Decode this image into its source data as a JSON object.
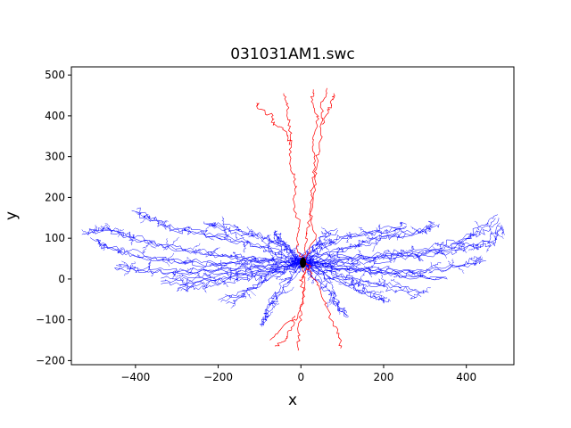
{
  "chart_data": {
    "type": "scatter",
    "title": "031031AM1.swc",
    "xlabel": "x",
    "ylabel": "y",
    "xlim": [
      -555,
      515
    ],
    "ylim": [
      -210,
      520
    ],
    "xticks": [
      -400,
      -200,
      0,
      200,
      400
    ],
    "xtick_labels": [
      "−400",
      "−200",
      "0",
      "200",
      "400"
    ],
    "yticks": [
      -200,
      -100,
      0,
      100,
      200,
      300,
      400,
      500
    ],
    "ytick_labels": [
      "−200",
      "−100",
      "0",
      "100",
      "200",
      "300",
      "400",
      "500"
    ],
    "grid": false,
    "legend": "none",
    "soma": {
      "x": 5,
      "y": 40,
      "color": "#000000"
    },
    "series": [
      {
        "color": "#0000ff",
        "paths": [
          [
            [
              5,
              40
            ],
            [
              -60,
              45
            ],
            [
              -130,
              50
            ],
            [
              -200,
              58
            ],
            [
              -270,
              68
            ],
            [
              -340,
              80
            ],
            [
              -400,
              100
            ],
            [
              -440,
              112
            ],
            [
              -480,
              122
            ],
            [
              -520,
              110
            ]
          ],
          [
            [
              5,
              40
            ],
            [
              -70,
              30
            ],
            [
              -150,
              25
            ],
            [
              -230,
              18
            ],
            [
              -310,
              15
            ],
            [
              -390,
              20
            ],
            [
              -450,
              28
            ]
          ],
          [
            [
              5,
              40
            ],
            [
              -40,
              60
            ],
            [
              -100,
              80
            ],
            [
              -160,
              95
            ],
            [
              -230,
              110
            ],
            [
              -300,
              120
            ],
            [
              -360,
              145
            ],
            [
              -400,
              168
            ]
          ],
          [
            [
              5,
              40
            ],
            [
              -50,
              20
            ],
            [
              -120,
              5
            ],
            [
              -190,
              -5
            ],
            [
              -250,
              -15
            ],
            [
              -300,
              -25
            ]
          ],
          [
            [
              5,
              40
            ],
            [
              -30,
              0
            ],
            [
              -60,
              -40
            ],
            [
              -80,
              -80
            ],
            [
              -95,
              -115
            ]
          ],
          [
            [
              5,
              40
            ],
            [
              -80,
              42
            ],
            [
              -160,
              38
            ],
            [
              -240,
              35
            ],
            [
              -330,
              45
            ],
            [
              -410,
              60
            ],
            [
              -470,
              75
            ],
            [
              -500,
              95
            ]
          ],
          [
            [
              5,
              40
            ],
            [
              -40,
              75
            ],
            [
              -90,
              100
            ],
            [
              -140,
              110
            ],
            [
              -190,
              125
            ],
            [
              -230,
              135
            ]
          ],
          [
            [
              5,
              40
            ],
            [
              -60,
              10
            ],
            [
              -110,
              -20
            ],
            [
              -150,
              -45
            ],
            [
              -190,
              -60
            ]
          ],
          [
            [
              5,
              40
            ],
            [
              70,
              45
            ],
            [
              140,
              50
            ],
            [
              210,
              55
            ],
            [
              280,
              62
            ],
            [
              350,
              72
            ],
            [
              410,
              85
            ],
            [
              460,
              95
            ],
            [
              485,
              138
            ]
          ],
          [
            [
              5,
              40
            ],
            [
              80,
              30
            ],
            [
              160,
              20
            ],
            [
              240,
              15
            ],
            [
              320,
              20
            ],
            [
              390,
              30
            ],
            [
              440,
              45
            ]
          ],
          [
            [
              5,
              40
            ],
            [
              50,
              60
            ],
            [
              110,
              80
            ],
            [
              170,
              95
            ],
            [
              230,
              110
            ],
            [
              290,
              120
            ],
            [
              330,
              140
            ]
          ],
          [
            [
              5,
              40
            ],
            [
              60,
              15
            ],
            [
              120,
              0
            ],
            [
              180,
              -10
            ],
            [
              240,
              -20
            ],
            [
              300,
              -35
            ]
          ],
          [
            [
              5,
              40
            ],
            [
              40,
              5
            ],
            [
              70,
              -30
            ],
            [
              90,
              -60
            ],
            [
              110,
              -90
            ]
          ],
          [
            [
              5,
              40
            ],
            [
              90,
              48
            ],
            [
              170,
              52
            ],
            [
              250,
              60
            ],
            [
              330,
              75
            ],
            [
              400,
              95
            ],
            [
              440,
              118
            ],
            [
              470,
              150
            ]
          ],
          [
            [
              5,
              40
            ],
            [
              45,
              75
            ],
            [
              100,
              95
            ],
            [
              150,
              105
            ],
            [
              200,
              115
            ],
            [
              250,
              128
            ]
          ],
          [
            [
              5,
              40
            ],
            [
              70,
              10
            ],
            [
              130,
              -20
            ],
            [
              175,
              -40
            ],
            [
              210,
              -55
            ]
          ],
          [
            [
              5,
              40
            ],
            [
              -20,
              70
            ],
            [
              -50,
              95
            ],
            [
              -70,
              115
            ]
          ],
          [
            [
              5,
              40
            ],
            [
              25,
              70
            ],
            [
              55,
              95
            ],
            [
              80,
              120
            ]
          ],
          [
            [
              5,
              40
            ],
            [
              -100,
              20
            ],
            [
              -180,
              10
            ],
            [
              -260,
              0
            ],
            [
              -340,
              -5
            ]
          ],
          [
            [
              5,
              40
            ],
            [
              100,
              25
            ],
            [
              190,
              15
            ],
            [
              270,
              5
            ],
            [
              350,
              0
            ]
          ]
        ]
      },
      {
        "color": "#ff0000",
        "paths": [
          [
            [
              5,
              40
            ],
            [
              0,
              80
            ],
            [
              -5,
              130
            ],
            [
              -10,
              180
            ],
            [
              -15,
              230
            ],
            [
              -20,
              280
            ],
            [
              -25,
              330
            ],
            [
              -30,
              380
            ],
            [
              -40,
              430
            ],
            [
              -50,
              455
            ]
          ],
          [
            [
              -25,
              330
            ],
            [
              -40,
              360
            ],
            [
              -60,
              380
            ],
            [
              -80,
              400
            ],
            [
              -100,
              420
            ],
            [
              -115,
              432
            ]
          ],
          [
            [
              5,
              40
            ],
            [
              15,
              90
            ],
            [
              20,
              140
            ],
            [
              25,
              190
            ],
            [
              28,
              240
            ],
            [
              30,
              290
            ],
            [
              32,
              340
            ],
            [
              35,
              390
            ],
            [
              25,
              440
            ],
            [
              30,
              465
            ]
          ],
          [
            [
              5,
              40
            ],
            [
              25,
              100
            ],
            [
              30,
              160
            ],
            [
              35,
              220
            ],
            [
              40,
              280
            ],
            [
              45,
              330
            ],
            [
              50,
              380
            ],
            [
              58,
              430
            ],
            [
              62,
              468
            ]
          ],
          [
            [
              50,
              380
            ],
            [
              60,
              410
            ],
            [
              70,
              430
            ],
            [
              80,
              455
            ]
          ],
          [
            [
              5,
              40
            ],
            [
              15,
              30
            ],
            [
              10,
              0
            ],
            [
              0,
              -40
            ],
            [
              -15,
              -90
            ],
            [
              -25,
              -120
            ],
            [
              -35,
              -150
            ],
            [
              -60,
              -165
            ]
          ],
          [
            [
              5,
              40
            ],
            [
              20,
              20
            ],
            [
              40,
              -10
            ],
            [
              60,
              -50
            ],
            [
              75,
              -100
            ],
            [
              85,
              -140
            ],
            [
              90,
              -170
            ]
          ],
          [
            [
              5,
              40
            ],
            [
              10,
              -20
            ],
            [
              5,
              -80
            ],
            [
              0,
              -130
            ],
            [
              2,
              -175
            ]
          ],
          [
            [
              -15,
              -90
            ],
            [
              -45,
              -115
            ],
            [
              -80,
              -150
            ]
          ]
        ]
      }
    ]
  }
}
